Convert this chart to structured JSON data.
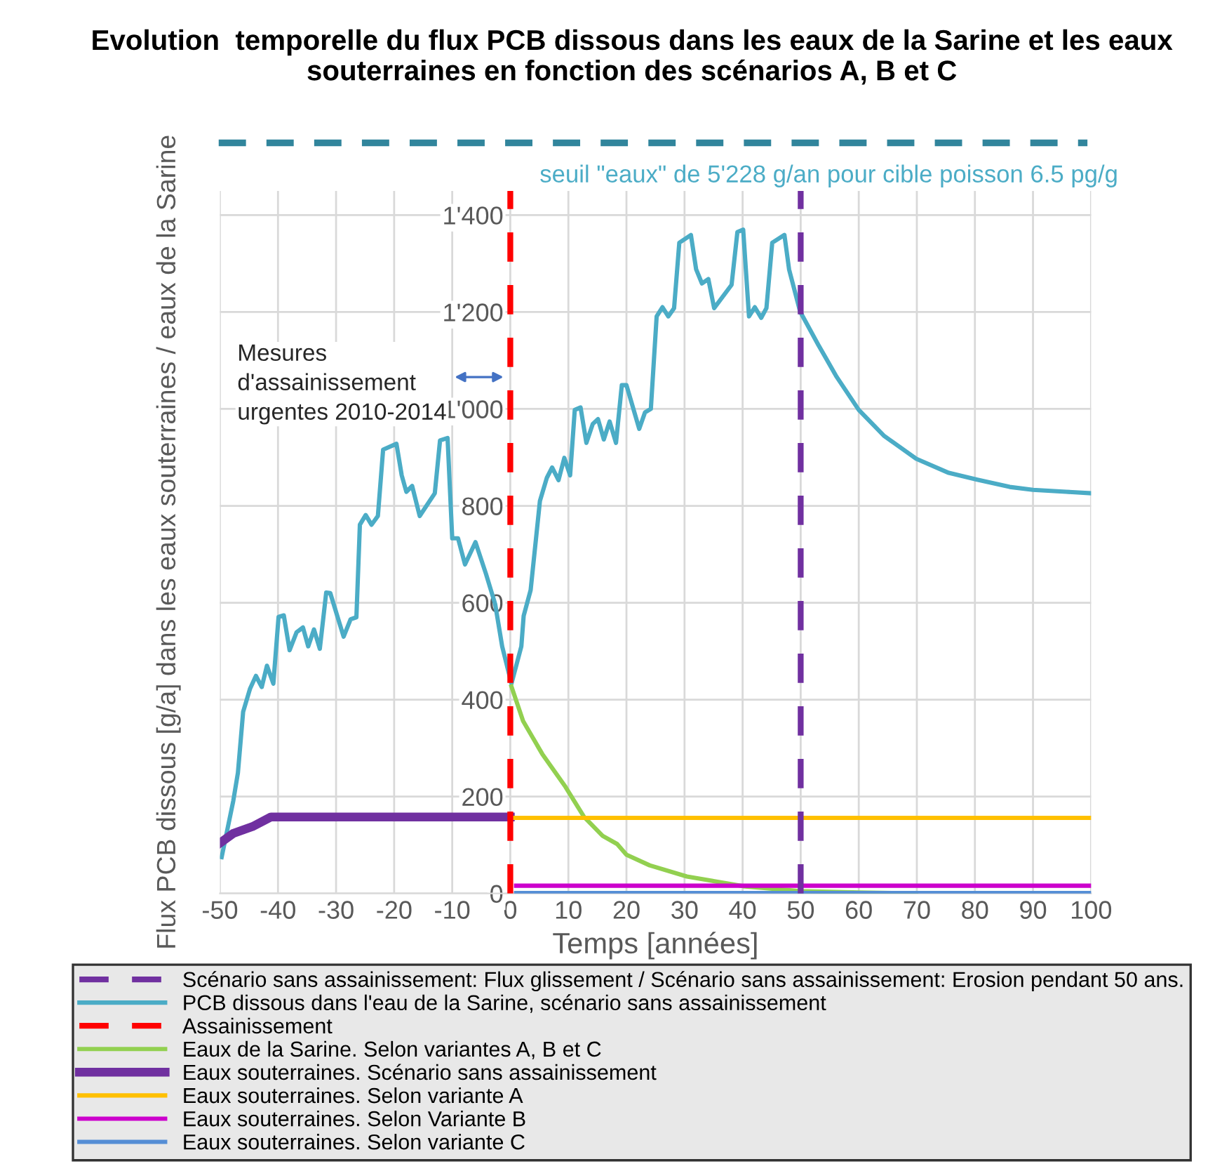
{
  "chart_data": {
    "type": "line",
    "title": "Evolution  temporelle du flux PCB dissous dans les eaux de la Sarine et les eaux souterraines en fonction des scénarios A, B et C",
    "xlabel": "Temps [années]",
    "ylabel": "Flux PCB dissous [g/a] dans les eaux souterraines / eaux de la Sarine",
    "xlim": [
      -50,
      100
    ],
    "xticks": [
      -50,
      -40,
      -30,
      -20,
      -10,
      0,
      10,
      20,
      30,
      40,
      50,
      60,
      70,
      80,
      90,
      100
    ],
    "ylim": [
      0,
      1450
    ],
    "yticks": [
      0,
      200,
      400,
      600,
      800,
      {
        "value": 1000,
        "label": "1'000"
      },
      {
        "value": 1200,
        "label": "1'200"
      },
      {
        "value": 1400,
        "label": "1'400"
      }
    ],
    "grid": true,
    "legend": "bottom",
    "marker": "none",
    "line_style": "solid",
    "ref_lines": [
      {
        "axis": "x",
        "value": 50,
        "label": "Scénario sans assainissement: Flux glissement / Scénario sans assainissement: Erosion pendant 50 ans.",
        "color": "#7030a0",
        "line_style": "dashed"
      },
      {
        "axis": "x",
        "value": 0,
        "label": "Assainissement",
        "color": "#ff0000",
        "line_style": "dashed"
      }
    ],
    "annotations": [
      "seuil \"eaux\" de 5'228 g/an pour cible poisson 6.5 pg/g",
      "Mesures d'assainissement urgentes 2010-2014"
    ],
    "series": [
      {
        "name": "PCB dissous dans l'eau de la Sarine, scénario sans assainissement",
        "color": "#4bacc6",
        "x": [
          -49.7,
          -47.7,
          -46.9,
          -46,
          -44.8,
          -43.8,
          -42.8,
          -41.9,
          -40.8,
          -39.9,
          -39,
          -38,
          -36.8,
          -35.7,
          -34.8,
          -33.8,
          -32.8,
          -31.7,
          -31,
          -28.7,
          -27.5,
          -26.5,
          -25.9,
          -24.9,
          -23.9,
          -22.8,
          -21.9,
          -19.6,
          -18.7,
          -17.9,
          -16.9,
          -15.6,
          -13,
          -12.1,
          -10.8,
          -10,
          -9,
          -7.8,
          -6,
          -4.2,
          -2.6,
          -1.4,
          0.2,
          1.9,
          2.3,
          3.5,
          5.1,
          6.3,
          7.2,
          8.3,
          9.3,
          10.3,
          11.1,
          12.1,
          13.1,
          14.2,
          15.1,
          16.1,
          17.1,
          18.2,
          19.2,
          20,
          22.2,
          23.2,
          24.2,
          25.2,
          26.2,
          27.2,
          28.2,
          29.1,
          31.1,
          32,
          33,
          34.1,
          35.1,
          38.1,
          39.1,
          40.1,
          41.1,
          42.1,
          43.2,
          44.1,
          45.1,
          47.2,
          48,
          49.9,
          53,
          56.2,
          60,
          64.3,
          69.9,
          75.5,
          80.4,
          86,
          90,
          95.7,
          100
        ],
        "values": [
          75,
          191,
          249,
          375,
          423,
          449,
          426,
          470,
          433,
          571,
          574,
          502,
          539,
          549,
          510,
          545,
          505,
          621,
          620,
          530,
          566,
          570,
          761,
          781,
          761,
          779,
          916,
          928,
          863,
          829,
          841,
          779,
          826,
          935,
          940,
          733,
          733,
          679,
          725,
          660,
          597,
          510,
          433,
          510,
          573,
          626,
          810,
          858,
          879,
          853,
          899,
          863,
          998,
          1003,
          930,
          969,
          979,
          937,
          974,
          930,
          1049,
          1049,
          959,
          993,
          1000,
          1191,
          1210,
          1191,
          1208,
          1343,
          1359,
          1288,
          1259,
          1268,
          1208,
          1256,
          1365,
          1370,
          1191,
          1210,
          1188,
          1208,
          1343,
          1359,
          1288,
          1201,
          1133,
          1066,
          998,
          945,
          897,
          868,
          854,
          839,
          833,
          829,
          826
        ]
      },
      {
        "name": "Eaux de la Sarine. Selon variantes A, B et C",
        "color": "#92d050",
        "x": [
          0.2,
          2.2,
          5.5,
          9.5,
          12.7,
          15.9,
          18.4,
          20,
          24,
          30.4,
          40.1,
          49.8,
          60.2,
          69.9
        ],
        "values": [
          427,
          356,
          288,
          220,
          158,
          119,
          102,
          80,
          58,
          35,
          15,
          5,
          2,
          0
        ]
      },
      {
        "name": "Eaux souterraines. Scénario sans assainissement",
        "color": "#7030a0",
        "x": [
          -50,
          -47.7,
          -44.4,
          -41.2,
          0
        ],
        "values": [
          104,
          124,
          138,
          158,
          158
        ]
      },
      {
        "name": "Eaux souterraines. Selon variante A",
        "color": "#ffc000",
        "x": [
          0,
          100
        ],
        "values": [
          156,
          156
        ]
      },
      {
        "name": "Eaux souterraines. Selon Variante B",
        "color": "#cc00cc",
        "x": [
          1,
          100
        ],
        "values": [
          16,
          16
        ]
      },
      {
        "name": "Eaux souterraines. Selon variante C",
        "color": "#558ed5",
        "x": [
          1,
          100
        ],
        "values": [
          1,
          1
        ]
      }
    ]
  }
}
